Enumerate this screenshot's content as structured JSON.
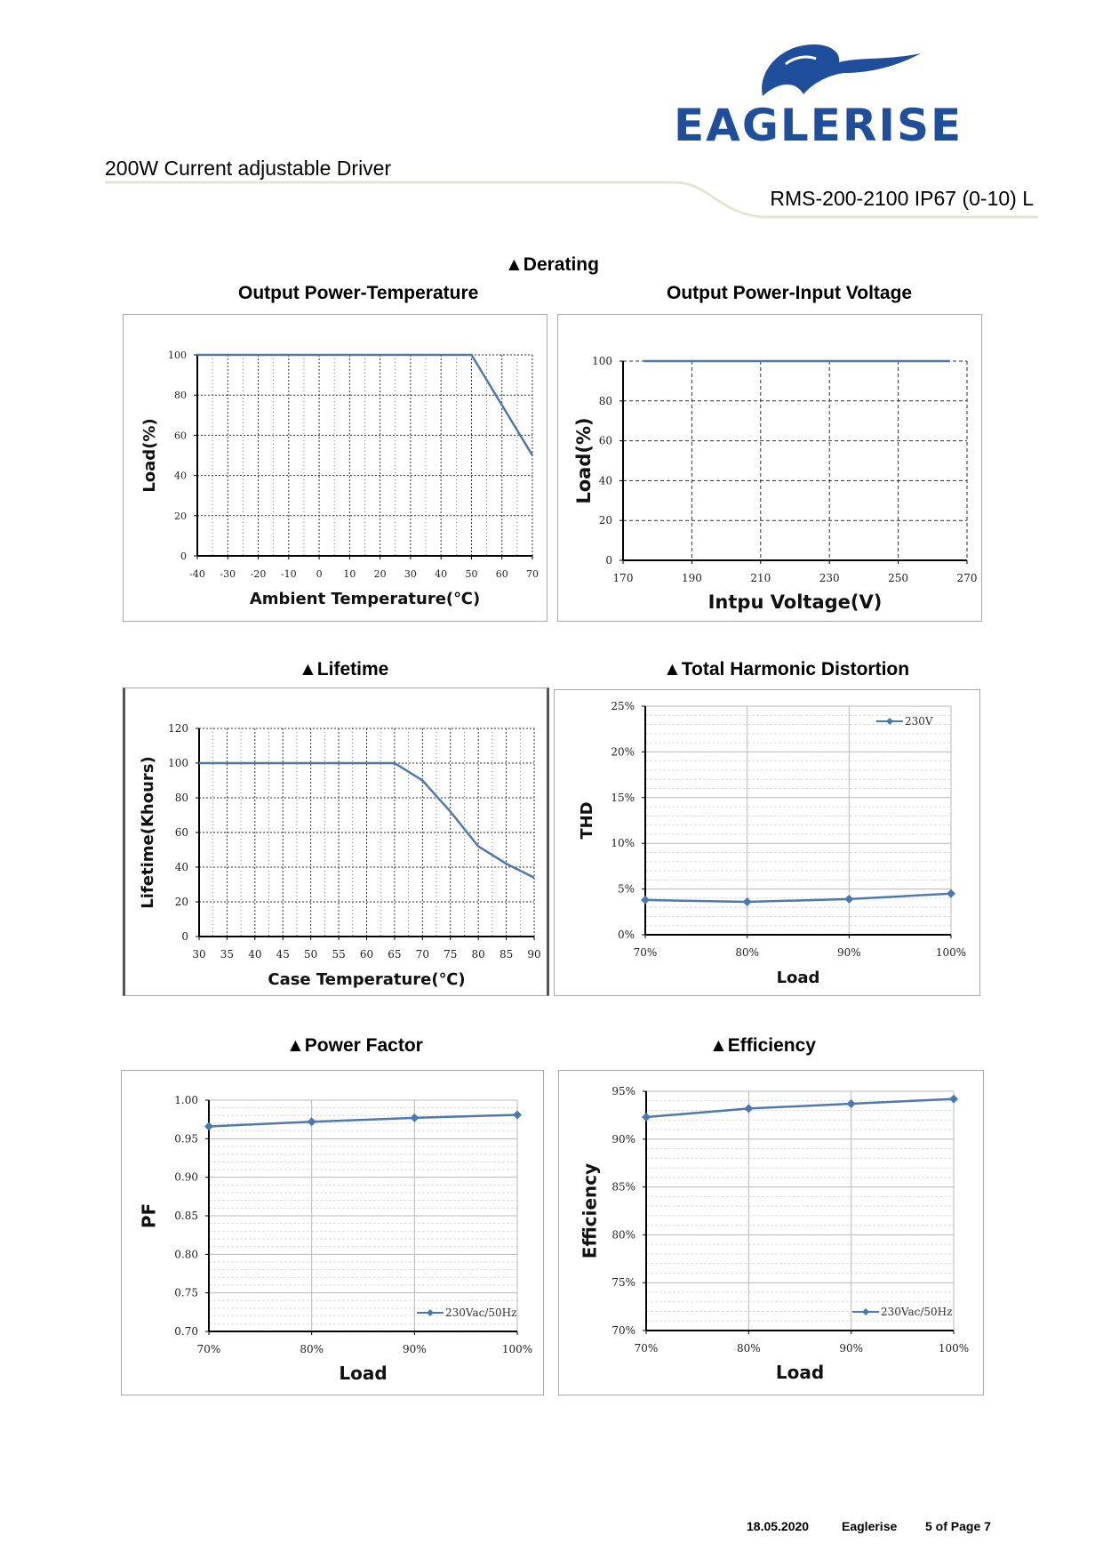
{
  "header": {
    "logo_text": "EAGLERISE",
    "doc_title": "200W Current adjustable Driver",
    "model": "RMS-200-2100 IP67 (0-10) L"
  },
  "sections": {
    "derating": "▲Derating",
    "lifetime": "▲Lifetime",
    "thd": "▲Total Harmonic Distortion",
    "pf": "▲Power Factor",
    "efficiency": "▲Efficiency"
  },
  "footer": {
    "date": "18.05.2020",
    "company": "Eaglerise",
    "page": "5 of Page 7"
  },
  "colors": {
    "line": "#4f79ad",
    "marker": "#4a78b0",
    "logo": "#1f4f9c",
    "border": "#a9a9a9"
  },
  "chart_data": [
    {
      "id": "c1",
      "type": "line",
      "title": "Output Power-Temperature",
      "xlabel": "Ambient Temperature(℃)",
      "ylabel": "Load(%)",
      "xlim": [
        -40,
        70
      ],
      "ylim": [
        0,
        100
      ],
      "xticks": [
        -40,
        -30,
        -20,
        -10,
        0,
        10,
        20,
        30,
        40,
        50,
        60,
        70
      ],
      "yticks": [
        0,
        20,
        40,
        60,
        80,
        100
      ],
      "grid": "dotted",
      "markers": false,
      "series": [
        {
          "x": [
            -40,
            50,
            70
          ],
          "y": [
            100,
            100,
            50
          ]
        }
      ]
    },
    {
      "id": "c2",
      "type": "line",
      "title": "Output Power-Input Voltage",
      "xlabel": "Intpu Voltage(V)",
      "ylabel": "Load(%)",
      "xlim": [
        170,
        270
      ],
      "ylim": [
        0,
        100
      ],
      "xticks": [
        170,
        190,
        210,
        230,
        250,
        270
      ],
      "yticks": [
        0,
        20,
        40,
        60,
        80,
        100
      ],
      "grid": "dashed",
      "markers": false,
      "series": [
        {
          "x": [
            176,
            265
          ],
          "y": [
            100,
            100
          ]
        }
      ]
    },
    {
      "id": "c3",
      "type": "line",
      "xlabel": "Case Temperature(℃)",
      "ylabel": "Lifetime(Khours)",
      "xlim": [
        30,
        90
      ],
      "ylim": [
        0,
        120
      ],
      "xticks": [
        30,
        35,
        40,
        45,
        50,
        55,
        60,
        65,
        70,
        75,
        80,
        85,
        90
      ],
      "yticks": [
        0,
        20,
        40,
        60,
        80,
        100,
        120
      ],
      "grid": "dotted",
      "markers": false,
      "series": [
        {
          "x": [
            30,
            65,
            70,
            75,
            80,
            85,
            90
          ],
          "y": [
            100,
            100,
            90,
            72,
            52,
            42,
            34
          ]
        }
      ]
    },
    {
      "id": "c4",
      "type": "line",
      "xlabel": "Load",
      "ylabel": "THD",
      "xlim": [
        70,
        100
      ],
      "ylim": [
        0,
        25
      ],
      "xticks": [
        70,
        80,
        90,
        100
      ],
      "yticks": [
        0,
        5,
        10,
        15,
        20,
        25
      ],
      "xtick_labels": [
        "70%",
        "80%",
        "90%",
        "100%"
      ],
      "ytick_labels": [
        "0%",
        "5%",
        "10%",
        "15%",
        "20%",
        "25%"
      ],
      "grid": "solid-minor",
      "markers": true,
      "legend": "top-right",
      "series": [
        {
          "name": "230V",
          "x": [
            70,
            80,
            90,
            100
          ],
          "y": [
            3.8,
            3.6,
            3.9,
            4.5
          ]
        }
      ]
    },
    {
      "id": "c5",
      "type": "line",
      "xlabel": "Load",
      "ylabel": "PF",
      "xlim": [
        70,
        100
      ],
      "ylim": [
        0.7,
        1.0
      ],
      "xticks": [
        70,
        80,
        90,
        100
      ],
      "yticks": [
        0.7,
        0.75,
        0.8,
        0.85,
        0.9,
        0.95,
        1.0
      ],
      "xtick_labels": [
        "70%",
        "80%",
        "90%",
        "100%"
      ],
      "ytick_labels": [
        "0.70",
        "0.75",
        "0.80",
        "0.85",
        "0.90",
        "0.95",
        "1.00"
      ],
      "grid": "solid-minor",
      "markers": true,
      "legend": "bottom-right",
      "series": [
        {
          "name": "230Vac/50Hz",
          "x": [
            70,
            80,
            90,
            100
          ],
          "y": [
            0.966,
            0.972,
            0.977,
            0.981
          ]
        }
      ]
    },
    {
      "id": "c6",
      "type": "line",
      "xlabel": "Load",
      "ylabel": "Efficiency",
      "xlim": [
        70,
        100
      ],
      "ylim": [
        70,
        95
      ],
      "xticks": [
        70,
        80,
        90,
        100
      ],
      "yticks": [
        70,
        75,
        80,
        85,
        90,
        95
      ],
      "xtick_labels": [
        "70%",
        "80%",
        "90%",
        "100%"
      ],
      "ytick_labels": [
        "70%",
        "75%",
        "80%",
        "85%",
        "90%",
        "95%"
      ],
      "grid": "solid-minor",
      "markers": true,
      "legend": "bottom-right",
      "series": [
        {
          "name": "230Vac/50Hz",
          "x": [
            70,
            80,
            90,
            100
          ],
          "y": [
            92.3,
            93.2,
            93.7,
            94.2
          ]
        }
      ]
    }
  ]
}
